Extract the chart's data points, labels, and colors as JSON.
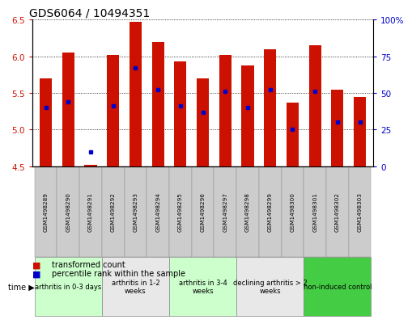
{
  "title": "GDS6064 / 10494351",
  "samples": [
    "GSM1498289",
    "GSM1498290",
    "GSM1498291",
    "GSM1498292",
    "GSM1498293",
    "GSM1498294",
    "GSM1498295",
    "GSM1498296",
    "GSM1498297",
    "GSM1498298",
    "GSM1498299",
    "GSM1498300",
    "GSM1498301",
    "GSM1498302",
    "GSM1498303"
  ],
  "transformed_count": [
    5.7,
    6.05,
    4.52,
    6.02,
    6.47,
    6.2,
    5.93,
    5.7,
    6.02,
    5.88,
    6.1,
    5.37,
    6.15,
    5.55,
    5.45
  ],
  "percentile_rank": [
    40,
    44,
    10,
    41,
    67,
    52,
    41,
    37,
    51,
    40,
    52,
    25,
    51,
    30,
    30
  ],
  "ylim_left": [
    4.5,
    6.5
  ],
  "ylim_right": [
    0,
    100
  ],
  "yticks_left": [
    4.5,
    5.0,
    5.5,
    6.0,
    6.5
  ],
  "yticks_right": [
    0,
    25,
    50,
    75,
    100
  ],
  "bar_color": "#cc1100",
  "dot_color": "#0000cc",
  "bar_bottom": 4.5,
  "groups": [
    {
      "label": "arthritis in 0-3 days",
      "start": 0,
      "end": 3,
      "color": "#ccffcc"
    },
    {
      "label": "arthritis in 1-2\nweeks",
      "start": 3,
      "end": 6,
      "color": "#e8e8e8"
    },
    {
      "label": "arthritis in 3-4\nweeks",
      "start": 6,
      "end": 9,
      "color": "#ccffcc"
    },
    {
      "label": "declining arthritis > 2\nweeks",
      "start": 9,
      "end": 12,
      "color": "#e8e8e8"
    },
    {
      "label": "non-induced control",
      "start": 12,
      "end": 15,
      "color": "#44cc44"
    }
  ],
  "legend_items": [
    {
      "label": "transformed count",
      "color": "#cc1100"
    },
    {
      "label": "percentile rank within the sample",
      "color": "#0000cc"
    }
  ],
  "title_fontsize": 10,
  "axis_label_color_left": "#cc1100",
  "axis_label_color_right": "#0000cc",
  "sample_box_color": "#cccccc",
  "plot_bg": "#ffffff"
}
